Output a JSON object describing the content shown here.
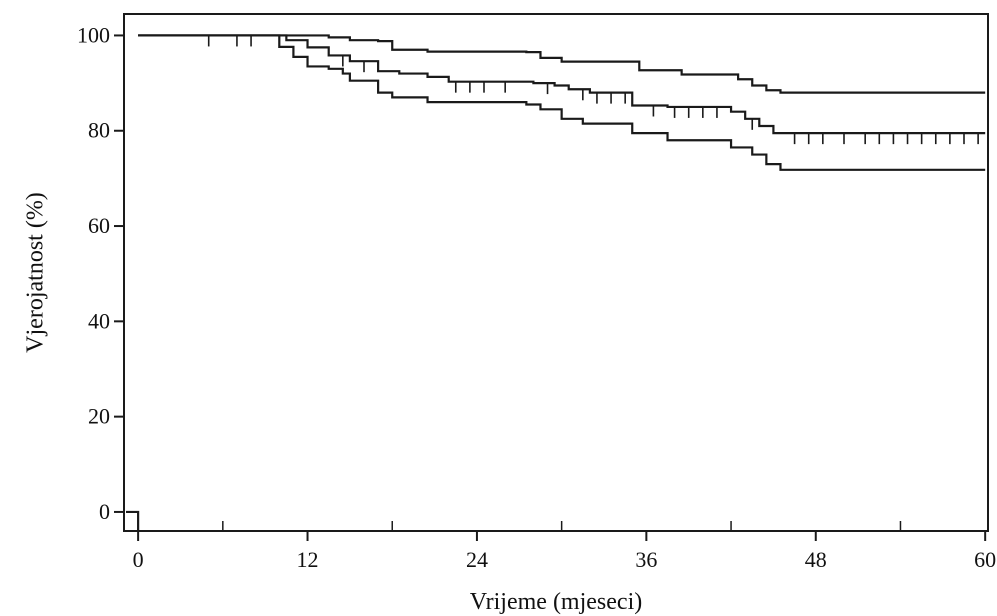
{
  "chart_data": {
    "type": "line",
    "title": "",
    "xlabel": "Vrijeme (mjeseci)",
    "ylabel": "Vjerojatnost (%)",
    "xlim": [
      -1,
      60.2
    ],
    "ylim": [
      -4,
      104.5
    ],
    "x_ticks": [
      0,
      12,
      24,
      36,
      48,
      60
    ],
    "x_minor_ticks": [
      6,
      18,
      30,
      42,
      54
    ],
    "y_ticks": [
      0,
      20,
      40,
      60,
      80,
      100
    ],
    "grid": false,
    "legend": "none",
    "line_color": "#1a1a1a",
    "series": [
      {
        "role": "upper-confidence-bound",
        "points": [
          [
            0,
            100
          ],
          [
            11,
            100
          ],
          [
            13.5,
            99.6
          ],
          [
            15,
            99
          ],
          [
            17,
            98.8
          ],
          [
            18,
            97
          ],
          [
            20.5,
            96.6
          ],
          [
            27.5,
            96.5
          ],
          [
            28.5,
            95.3
          ],
          [
            30,
            94.5
          ],
          [
            35.5,
            92.7
          ],
          [
            38.5,
            91.8
          ],
          [
            42.5,
            90.8
          ],
          [
            43.5,
            89.5
          ],
          [
            44.5,
            88.5
          ],
          [
            45.5,
            88
          ],
          [
            60,
            88
          ]
        ]
      },
      {
        "role": "survival-estimate",
        "points": [
          [
            0,
            100
          ],
          [
            9,
            100
          ],
          [
            10.5,
            99
          ],
          [
            12,
            97.5
          ],
          [
            13.5,
            95.8
          ],
          [
            15,
            94.6
          ],
          [
            17,
            92.5
          ],
          [
            18.5,
            92
          ],
          [
            20.5,
            91.3
          ],
          [
            22,
            90.3
          ],
          [
            28,
            90
          ],
          [
            29.5,
            89.5
          ],
          [
            30.5,
            88.7
          ],
          [
            32,
            88
          ],
          [
            35,
            85.3
          ],
          [
            37.5,
            85
          ],
          [
            42,
            84
          ],
          [
            43,
            82.5
          ],
          [
            44,
            81
          ],
          [
            45,
            79.5
          ],
          [
            60,
            79.5
          ]
        ]
      },
      {
        "role": "lower-confidence-bound",
        "points": [
          [
            0,
            100
          ],
          [
            9,
            100
          ],
          [
            10,
            97.6
          ],
          [
            11,
            95.5
          ],
          [
            12,
            93.5
          ],
          [
            13.5,
            93
          ],
          [
            14.5,
            92
          ],
          [
            15,
            90.5
          ],
          [
            17,
            88
          ],
          [
            18,
            87
          ],
          [
            20.5,
            86
          ],
          [
            27.5,
            85.5
          ],
          [
            28.5,
            84.5
          ],
          [
            30,
            82.5
          ],
          [
            31.5,
            81.5
          ],
          [
            35,
            79.5
          ],
          [
            37.5,
            78
          ],
          [
            42,
            76.5
          ],
          [
            43.5,
            75
          ],
          [
            44.5,
            73
          ],
          [
            45.5,
            71.8
          ],
          [
            60,
            71.8
          ]
        ]
      }
    ],
    "censor_marks": [
      {
        "x": 5,
        "y": 100
      },
      {
        "x": 7,
        "y": 100
      },
      {
        "x": 8,
        "y": 100
      },
      {
        "x": 14.5,
        "y": 95.8
      },
      {
        "x": 16,
        "y": 94.6
      },
      {
        "x": 22.5,
        "y": 90.3
      },
      {
        "x": 23.5,
        "y": 90.3
      },
      {
        "x": 24.5,
        "y": 90.3
      },
      {
        "x": 26,
        "y": 90.3
      },
      {
        "x": 29,
        "y": 90
      },
      {
        "x": 31.5,
        "y": 88.7
      },
      {
        "x": 32.5,
        "y": 88
      },
      {
        "x": 33.5,
        "y": 88
      },
      {
        "x": 34.5,
        "y": 88
      },
      {
        "x": 36.5,
        "y": 85.3
      },
      {
        "x": 38,
        "y": 85
      },
      {
        "x": 39,
        "y": 85
      },
      {
        "x": 40,
        "y": 85
      },
      {
        "x": 41,
        "y": 85
      },
      {
        "x": 43.5,
        "y": 82.5
      },
      {
        "x": 46.5,
        "y": 79.5
      },
      {
        "x": 47.5,
        "y": 79.5
      },
      {
        "x": 48.5,
        "y": 79.5
      },
      {
        "x": 50,
        "y": 79.5
      },
      {
        "x": 51.5,
        "y": 79.5
      },
      {
        "x": 52.5,
        "y": 79.5
      },
      {
        "x": 53.5,
        "y": 79.5
      },
      {
        "x": 54.5,
        "y": 79.5
      },
      {
        "x": 55.5,
        "y": 79.5
      },
      {
        "x": 56.5,
        "y": 79.5
      },
      {
        "x": 57.5,
        "y": 79.5
      },
      {
        "x": 58.5,
        "y": 79.5
      },
      {
        "x": 59.5,
        "y": 79.5
      }
    ],
    "origin_drop": {
      "x": 0,
      "from": 100,
      "to": -4
    }
  }
}
